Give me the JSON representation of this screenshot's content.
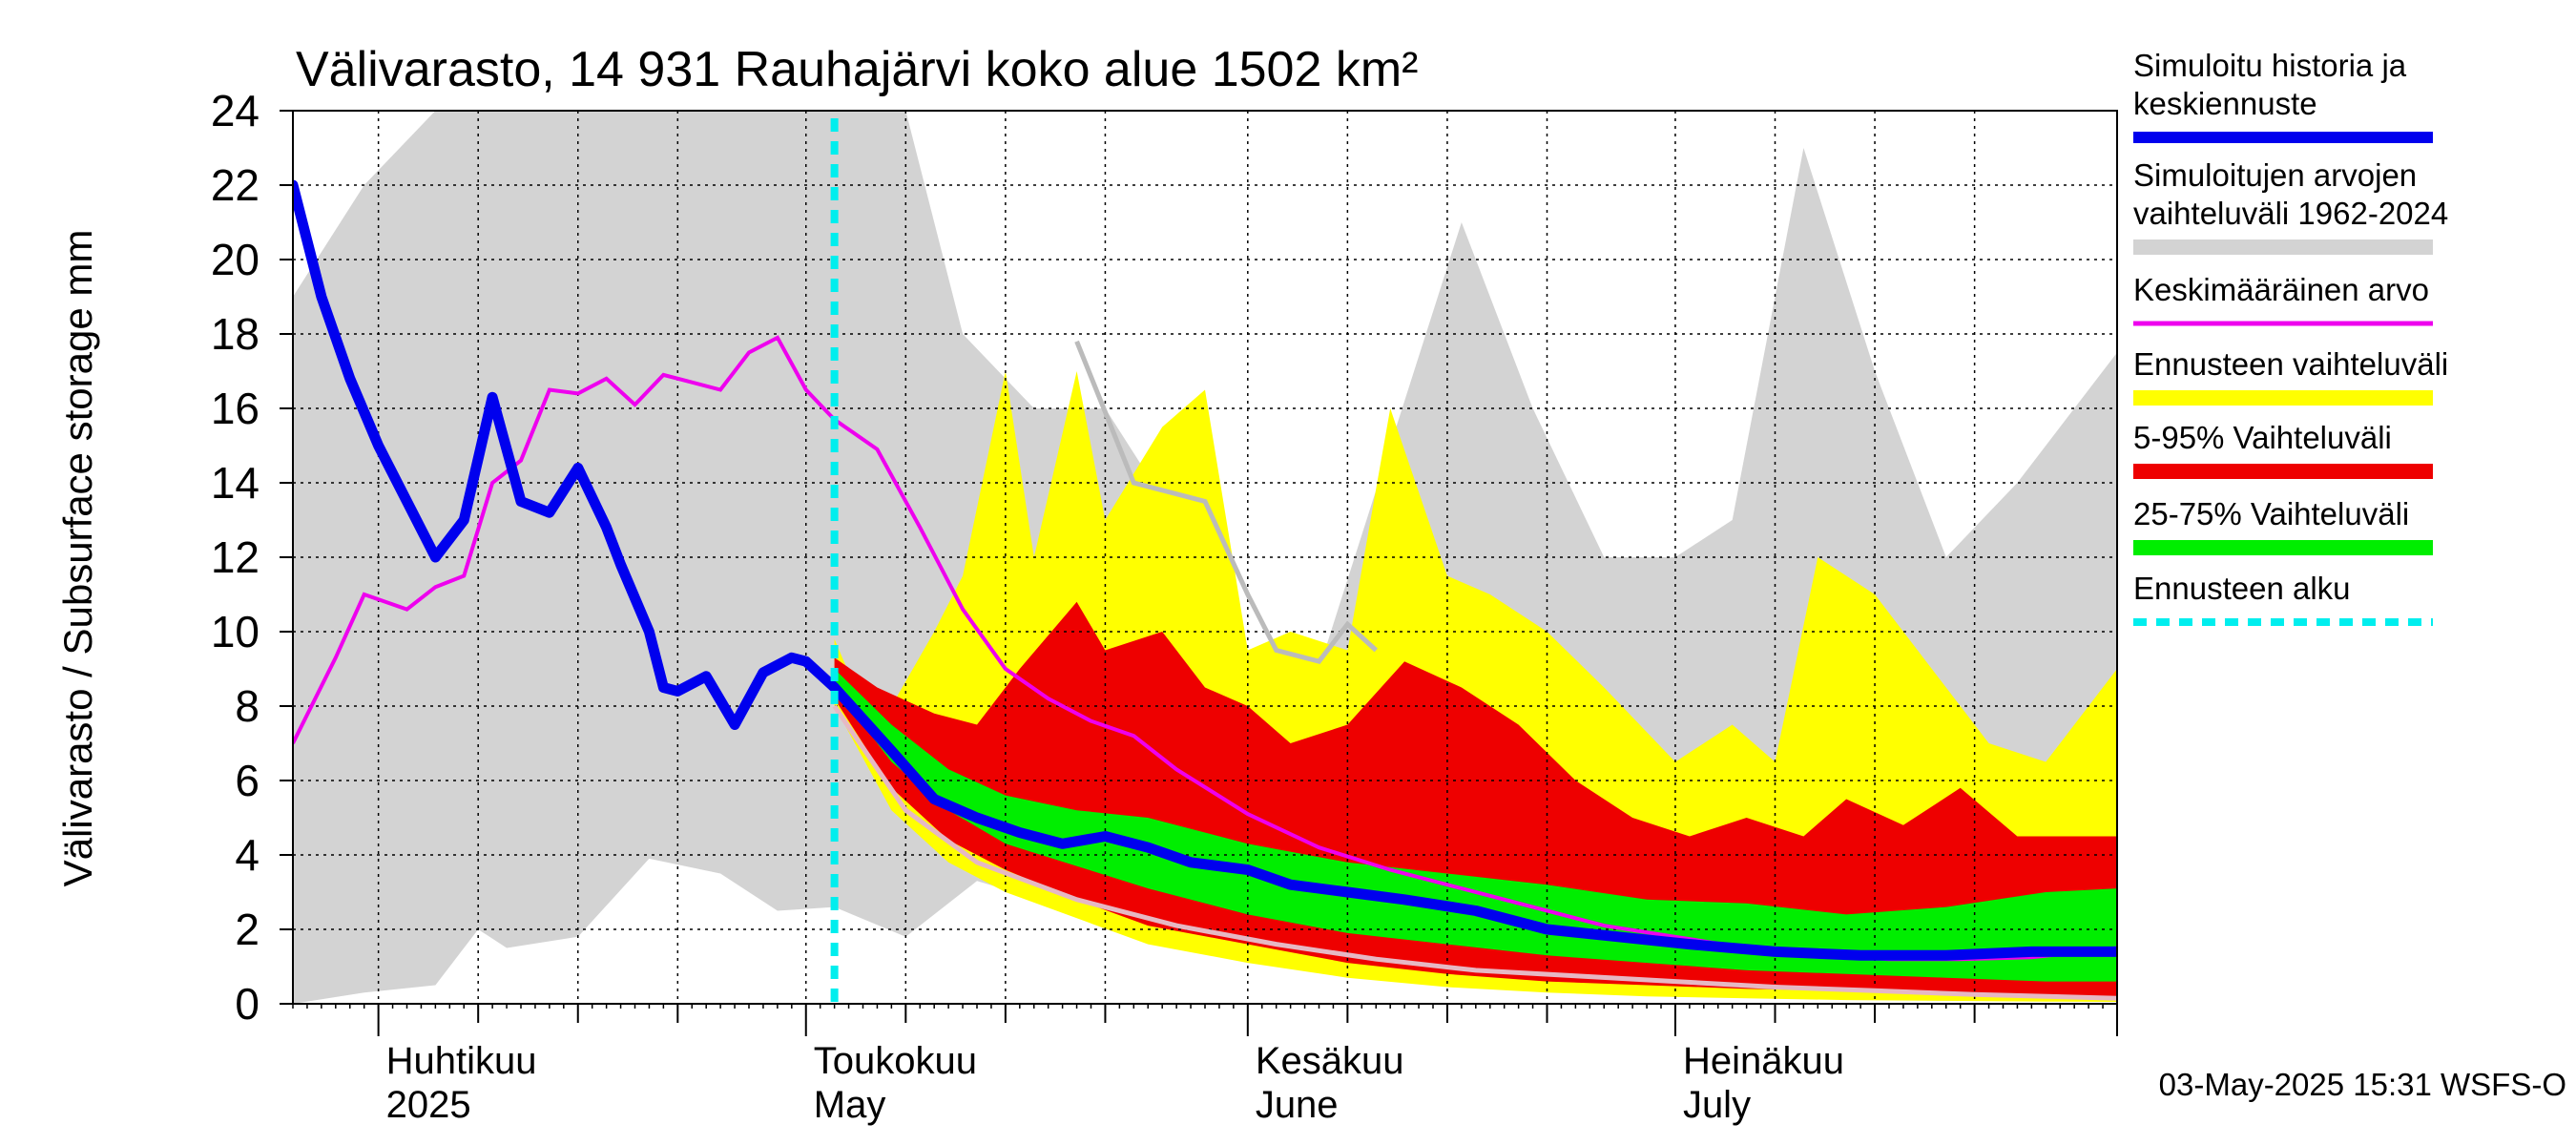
{
  "chart_data": {
    "type": "area",
    "title": "Välivarasto, 14 931 Rauhajärvi koko alue 1502 km²",
    "ylabel": "Välivarasto / Subsurface storage  mm",
    "ylim": [
      0,
      24
    ],
    "yticks": [
      0,
      2,
      4,
      6,
      8,
      10,
      12,
      14,
      16,
      18,
      20,
      22,
      24
    ],
    "xlim": [
      "2025-03-26",
      "2025-08-01"
    ],
    "x_month_labels": [
      {
        "line1": "Huhtikuu",
        "line2": "2025",
        "date": "2025-04-01"
      },
      {
        "line1": "Toukokuu",
        "line2": "May",
        "date": "2025-05-01"
      },
      {
        "line1": "Kesäkuu",
        "line2": "June",
        "date": "2025-06-01"
      },
      {
        "line1": "Heinäkuu",
        "line2": "July",
        "date": "2025-07-01"
      }
    ],
    "forecast_start": "2025-05-03",
    "footer": "03-May-2025 15:31 WSFS-O",
    "grid": true,
    "legend_position": "right",
    "legend": [
      {
        "label": "Simuloitu historia ja keskiennuste",
        "color": "#0000ee",
        "style": "line"
      },
      {
        "label": "Simuloitujen arvojen vaihteluväli 1962-2024",
        "color": "#d3d3d3",
        "style": "band"
      },
      {
        "label": "Keskimääräinen arvo",
        "color": "#ee00ee",
        "style": "line"
      },
      {
        "label": "Ennusteen vaihteluväli",
        "color": "#ffff00",
        "style": "band"
      },
      {
        "label": "5-95% Vaihteluväli",
        "color": "#ee0000",
        "style": "band"
      },
      {
        "label": "25-75% Vaihteluväli",
        "color": "#00ee00",
        "style": "band"
      },
      {
        "label": "Ennusteen alku",
        "color": "#00eeee",
        "style": "dashed"
      }
    ],
    "series": [
      {
        "key": "hist_range_upper",
        "dates": [
          "2025-03-26",
          "2025-03-31",
          "2025-04-05",
          "2025-04-10",
          "2025-04-15",
          "2025-04-20",
          "2025-04-25",
          "2025-05-01",
          "2025-05-08",
          "2025-05-12",
          "2025-05-17",
          "2025-05-22",
          "2025-05-27",
          "2025-06-01",
          "2025-06-06",
          "2025-06-11",
          "2025-06-16",
          "2025-06-21",
          "2025-06-26",
          "2025-07-01",
          "2025-07-05",
          "2025-07-10",
          "2025-07-15",
          "2025-07-20",
          "2025-07-25",
          "2025-08-01"
        ],
        "values": [
          19,
          22,
          24,
          24,
          24,
          24,
          24,
          24,
          24,
          18,
          16,
          16,
          13,
          9,
          9,
          15,
          21,
          16,
          12,
          12,
          13,
          23,
          17,
          12,
          14,
          17.5
        ]
      },
      {
        "key": "hist_range_lower",
        "dates": [
          "2025-03-26",
          "2025-03-31",
          "2025-04-05",
          "2025-04-08",
          "2025-04-10",
          "2025-04-15",
          "2025-04-20",
          "2025-04-25",
          "2025-04-29",
          "2025-05-03",
          "2025-05-08",
          "2025-05-13",
          "2025-05-20",
          "2025-05-31",
          "2025-06-10",
          "2025-06-20",
          "2025-07-01",
          "2025-07-10",
          "2025-07-20",
          "2025-08-01"
        ],
        "values": [
          0,
          0.3,
          0.5,
          2,
          1.5,
          1.8,
          3.9,
          3.5,
          2.5,
          2.6,
          1.8,
          3.3,
          2.5,
          1.5,
          0.8,
          0.4,
          0.25,
          0.15,
          0.08,
          0.05
        ]
      },
      {
        "key": "forecast_range_upper",
        "dates": [
          "2025-05-03",
          "2025-05-05",
          "2025-05-07",
          "2025-05-10",
          "2025-05-12",
          "2025-05-15",
          "2025-05-17",
          "2025-05-20",
          "2025-05-22",
          "2025-05-26",
          "2025-05-29",
          "2025-06-01",
          "2025-06-04",
          "2025-06-08",
          "2025-06-11",
          "2025-06-15",
          "2025-06-18",
          "2025-06-22",
          "2025-06-26",
          "2025-07-01",
          "2025-07-05",
          "2025-07-08",
          "2025-07-11",
          "2025-07-15",
          "2025-07-19",
          "2025-07-23",
          "2025-07-27",
          "2025-08-01"
        ],
        "values": [
          9.8,
          8,
          8,
          10,
          11.5,
          17,
          12,
          17,
          13,
          15.5,
          16.5,
          9.5,
          10,
          9.5,
          16,
          11.5,
          11,
          10,
          8.5,
          6.5,
          7.5,
          6.5,
          12,
          11,
          9,
          7,
          6.5,
          9
        ]
      },
      {
        "key": "p95",
        "dates": [
          "2025-05-03",
          "2025-05-06",
          "2025-05-10",
          "2025-05-13",
          "2025-05-16",
          "2025-05-20",
          "2025-05-22",
          "2025-05-26",
          "2025-05-29",
          "2025-06-01",
          "2025-06-04",
          "2025-06-08",
          "2025-06-12",
          "2025-06-16",
          "2025-06-20",
          "2025-06-24",
          "2025-06-28",
          "2025-07-02",
          "2025-07-06",
          "2025-07-10",
          "2025-07-13",
          "2025-07-17",
          "2025-07-21",
          "2025-07-25",
          "2025-08-01"
        ],
        "values": [
          9.3,
          8.5,
          7.8,
          7.5,
          9,
          10.8,
          9.5,
          10,
          8.5,
          8,
          7,
          7.5,
          9.2,
          8.5,
          7.5,
          6,
          5,
          4.5,
          5,
          4.5,
          5.5,
          4.8,
          5.8,
          4.5,
          4.5
        ]
      },
      {
        "key": "p75",
        "dates": [
          "2025-05-03",
          "2025-05-07",
          "2025-05-11",
          "2025-05-15",
          "2025-05-20",
          "2025-05-25",
          "2025-06-01",
          "2025-06-08",
          "2025-06-15",
          "2025-06-22",
          "2025-06-29",
          "2025-07-06",
          "2025-07-13",
          "2025-07-20",
          "2025-07-27",
          "2025-08-01"
        ],
        "values": [
          9,
          7.5,
          6.3,
          5.6,
          5.2,
          5,
          4.3,
          3.8,
          3.5,
          3.2,
          2.8,
          2.7,
          2.4,
          2.6,
          3,
          3.1
        ]
      },
      {
        "key": "p25",
        "dates": [
          "2025-05-03",
          "2025-05-07",
          "2025-05-11",
          "2025-05-15",
          "2025-05-20",
          "2025-05-25",
          "2025-06-01",
          "2025-06-08",
          "2025-06-15",
          "2025-06-22",
          "2025-06-29",
          "2025-07-06",
          "2025-07-13",
          "2025-07-20",
          "2025-07-27",
          "2025-08-01"
        ],
        "values": [
          8.5,
          6.5,
          5.2,
          4.3,
          3.7,
          3.1,
          2.4,
          1.9,
          1.6,
          1.3,
          1.1,
          0.9,
          0.8,
          0.7,
          0.6,
          0.6
        ]
      },
      {
        "key": "p5",
        "dates": [
          "2025-05-03",
          "2025-05-07",
          "2025-05-11",
          "2025-05-15",
          "2025-05-20",
          "2025-05-25",
          "2025-06-01",
          "2025-06-08",
          "2025-06-15",
          "2025-06-22",
          "2025-06-29",
          "2025-07-06",
          "2025-07-13",
          "2025-07-20",
          "2025-07-27",
          "2025-08-01"
        ],
        "values": [
          8.2,
          5.8,
          4.4,
          3.6,
          2.8,
          2.1,
          1.6,
          1.1,
          0.8,
          0.6,
          0.5,
          0.4,
          0.35,
          0.3,
          0.25,
          0.2
        ]
      },
      {
        "key": "forecast_range_lower",
        "dates": [
          "2025-05-03",
          "2025-05-07",
          "2025-05-11",
          "2025-05-15",
          "2025-05-20",
          "2025-05-25",
          "2025-06-01",
          "2025-06-08",
          "2025-06-15",
          "2025-06-22",
          "2025-06-29",
          "2025-07-06",
          "2025-07-13",
          "2025-07-20",
          "2025-07-27",
          "2025-08-01"
        ],
        "values": [
          8,
          5.2,
          3.8,
          3,
          2.3,
          1.6,
          1.1,
          0.7,
          0.45,
          0.3,
          0.2,
          0.15,
          0.1,
          0.08,
          0.06,
          0.05
        ]
      },
      {
        "key": "hist_range_inner",
        "dates": [
          "2025-05-20",
          "2025-05-24",
          "2025-05-29",
          "2025-06-01",
          "2025-06-03",
          "2025-06-06",
          "2025-06-08",
          "2025-06-10"
        ],
        "values": [
          17.8,
          14,
          13.5,
          11,
          9.5,
          9.2,
          10.2,
          9.5
        ]
      },
      {
        "key": "hist_min_line",
        "dates": [
          "2025-05-03",
          "2025-05-08",
          "2025-05-13",
          "2025-05-20",
          "2025-05-27",
          "2025-06-03",
          "2025-06-10",
          "2025-06-17",
          "2025-06-24",
          "2025-07-01",
          "2025-07-08",
          "2025-07-15",
          "2025-07-22",
          "2025-08-01"
        ],
        "values": [
          8,
          5.2,
          3.8,
          2.8,
          2.1,
          1.6,
          1.2,
          0.9,
          0.75,
          0.6,
          0.45,
          0.35,
          0.25,
          0.15
        ]
      },
      {
        "key": "mean_line",
        "dates": [
          "2025-03-26",
          "2025-03-29",
          "2025-03-31",
          "2025-04-03",
          "2025-04-05",
          "2025-04-07",
          "2025-04-09",
          "2025-04-11",
          "2025-04-13",
          "2025-04-15",
          "2025-04-17",
          "2025-04-19",
          "2025-04-21",
          "2025-04-23",
          "2025-04-25",
          "2025-04-27",
          "2025-04-29",
          "2025-05-01",
          "2025-05-03",
          "2025-05-06",
          "2025-05-09",
          "2025-05-12",
          "2025-05-15",
          "2025-05-18",
          "2025-05-21",
          "2025-05-24",
          "2025-05-27",
          "2025-06-01",
          "2025-06-06",
          "2025-06-11",
          "2025-06-16",
          "2025-06-21",
          "2025-06-26",
          "2025-07-01",
          "2025-07-06",
          "2025-07-11",
          "2025-07-16",
          "2025-07-21",
          "2025-07-26",
          "2025-08-01"
        ],
        "values": [
          7,
          9.3,
          11,
          10.6,
          11.2,
          11.5,
          14,
          14.6,
          16.5,
          16.4,
          16.8,
          16.1,
          16.9,
          16.7,
          16.5,
          17.5,
          17.9,
          16.5,
          15.7,
          14.9,
          12.8,
          10.6,
          9,
          8.2,
          7.6,
          7.2,
          6.3,
          5.1,
          4.2,
          3.6,
          3.1,
          2.6,
          2.1,
          1.8,
          1.5,
          1.35,
          1.2,
          1.2,
          1.25,
          1.5
        ]
      },
      {
        "key": "median_line",
        "dates": [
          "2025-03-26",
          "2025-03-28",
          "2025-03-30",
          "2025-04-01",
          "2025-04-03",
          "2025-04-05",
          "2025-04-07",
          "2025-04-09",
          "2025-04-11",
          "2025-04-13",
          "2025-04-15",
          "2025-04-17",
          "2025-04-18",
          "2025-04-20",
          "2025-04-21",
          "2025-04-22",
          "2025-04-24",
          "2025-04-26",
          "2025-04-28",
          "2025-04-30",
          "2025-05-01",
          "2025-05-03",
          "2025-05-07",
          "2025-05-10",
          "2025-05-13",
          "2025-05-16",
          "2025-05-19",
          "2025-05-22",
          "2025-05-25",
          "2025-05-28",
          "2025-06-01",
          "2025-06-04",
          "2025-06-08",
          "2025-06-12",
          "2025-06-17",
          "2025-06-22",
          "2025-06-27",
          "2025-07-02",
          "2025-07-08",
          "2025-07-14",
          "2025-07-20",
          "2025-07-26",
          "2025-08-01"
        ],
        "values": [
          22,
          19,
          16.8,
          15,
          13.5,
          12,
          13,
          16.3,
          13.5,
          13.2,
          14.4,
          12.8,
          11.8,
          10,
          8.5,
          8.4,
          8.8,
          7.5,
          8.9,
          9.3,
          9.2,
          8.5,
          6.8,
          5.5,
          5,
          4.6,
          4.3,
          4.5,
          4.2,
          3.8,
          3.6,
          3.2,
          3,
          2.8,
          2.5,
          2,
          1.8,
          1.6,
          1.4,
          1.3,
          1.3,
          1.4,
          1.4
        ]
      }
    ]
  }
}
